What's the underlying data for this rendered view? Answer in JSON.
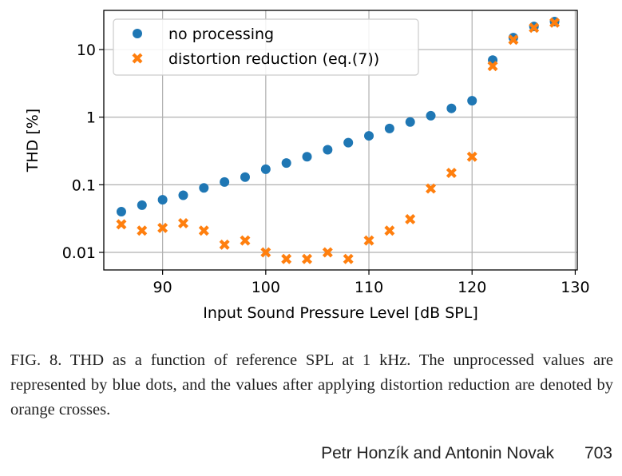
{
  "chart_data": {
    "type": "scatter",
    "xlabel": "Input Sound Pressure Level [dB SPL]",
    "ylabel": "THD [%]",
    "xlim": [
      84.3,
      130.2
    ],
    "ylim": [
      0.0055,
      38
    ],
    "yscale": "log",
    "grid": true,
    "legend_position": "top-left",
    "xticks": [
      {
        "value": 90,
        "label": "90"
      },
      {
        "value": 100,
        "label": "100"
      },
      {
        "value": 110,
        "label": "110"
      },
      {
        "value": 120,
        "label": "120"
      },
      {
        "value": 130,
        "label": "130"
      }
    ],
    "yticks": [
      {
        "value": 0.01,
        "label": "0.01"
      },
      {
        "value": 0.1,
        "label": "0.1"
      },
      {
        "value": 1,
        "label": "1"
      },
      {
        "value": 10,
        "label": "10"
      }
    ],
    "series": [
      {
        "name": "no processing",
        "marker": "circle",
        "color": "#1f77b4",
        "x": [
          86,
          88,
          90,
          92,
          94,
          96,
          98,
          100,
          102,
          104,
          106,
          108,
          110,
          112,
          114,
          116,
          118,
          120,
          122,
          124,
          126,
          128
        ],
        "y": [
          0.04,
          0.05,
          0.06,
          0.07,
          0.09,
          0.11,
          0.13,
          0.17,
          0.21,
          0.26,
          0.33,
          0.42,
          0.53,
          0.68,
          0.85,
          1.05,
          1.35,
          1.75,
          7.0,
          15.0,
          22.0,
          26.0
        ]
      },
      {
        "name": "distortion reduction (eq.(7))",
        "marker": "x",
        "color": "#ff7f0e",
        "x": [
          86,
          88,
          90,
          92,
          94,
          96,
          98,
          100,
          102,
          104,
          106,
          108,
          110,
          112,
          114,
          116,
          118,
          120,
          122,
          124,
          126,
          128
        ],
        "y": [
          0.026,
          0.021,
          0.023,
          0.027,
          0.021,
          0.013,
          0.015,
          0.01,
          0.008,
          0.008,
          0.01,
          0.008,
          0.015,
          0.021,
          0.031,
          0.088,
          0.15,
          0.26,
          5.7,
          14.0,
          21.0,
          25.0
        ]
      }
    ]
  },
  "caption": "FIG. 8. THD as a function of reference SPL at 1 kHz. The unprocessed values are represented by blue dots, and the values after applying distortion reduction are denoted by orange crosses.",
  "footer": {
    "authors": "Petr Honzík and Antonin Novak",
    "page_number": "703"
  }
}
